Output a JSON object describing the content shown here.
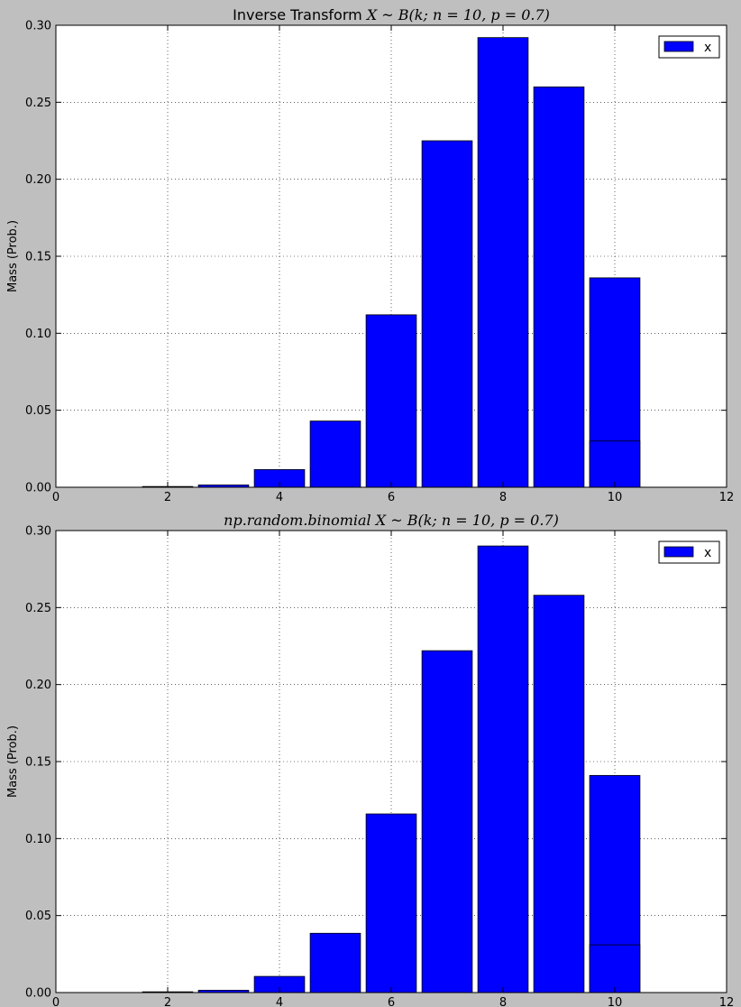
{
  "chart_data": [
    {
      "type": "bar",
      "title": "Inverse Transform",
      "title_math": "X ~ B(k; n = 10, p = 0.7)",
      "xlabel": "",
      "ylabel": "Mass (Prob.)",
      "xlim": [
        0,
        12
      ],
      "ylim": [
        0,
        0.3
      ],
      "xticks": [
        "0",
        "2",
        "4",
        "6",
        "8",
        "10",
        "12"
      ],
      "yticks": [
        "0.00",
        "0.05",
        "0.10",
        "0.15",
        "0.20",
        "0.25",
        "0.30"
      ],
      "grid": true,
      "legend_position": "top-right",
      "bar_color": "#0000ff",
      "series": [
        {
          "name": "x",
          "x": [
            2,
            3,
            4,
            5,
            6,
            7,
            8,
            9,
            10
          ],
          "values": [
            0.0005,
            0.0015,
            0.0115,
            0.043,
            0.112,
            0.225,
            0.292,
            0.26,
            0.136
          ]
        }
      ],
      "categories": [
        2,
        3,
        4,
        5,
        6,
        7,
        8,
        9,
        10
      ],
      "extra_bar": {
        "x": 10,
        "value": 0.03
      }
    },
    {
      "type": "bar",
      "title": "np.random.binomial",
      "title_math": "X ~ B(k; n = 10, p = 0.7)",
      "xlabel": "",
      "ylabel": "Mass (Prob.)",
      "xlim": [
        0,
        12
      ],
      "ylim": [
        0,
        0.3
      ],
      "xticks": [
        "0",
        "2",
        "4",
        "6",
        "8",
        "10",
        "12"
      ],
      "yticks": [
        "0.00",
        "0.05",
        "0.10",
        "0.15",
        "0.20",
        "0.25",
        "0.30"
      ],
      "grid": true,
      "legend_position": "top-right",
      "bar_color": "#0000ff",
      "series": [
        {
          "name": "x",
          "x": [
            2,
            3,
            4,
            5,
            6,
            7,
            8,
            9,
            10
          ],
          "values": [
            0.0005,
            0.0015,
            0.0105,
            0.0385,
            0.116,
            0.222,
            0.29,
            0.258,
            0.141
          ]
        }
      ],
      "categories": [
        2,
        3,
        4,
        5,
        6,
        7,
        8,
        9,
        10
      ],
      "extra_bar": {
        "x": 10,
        "value": 0.031
      }
    }
  ]
}
